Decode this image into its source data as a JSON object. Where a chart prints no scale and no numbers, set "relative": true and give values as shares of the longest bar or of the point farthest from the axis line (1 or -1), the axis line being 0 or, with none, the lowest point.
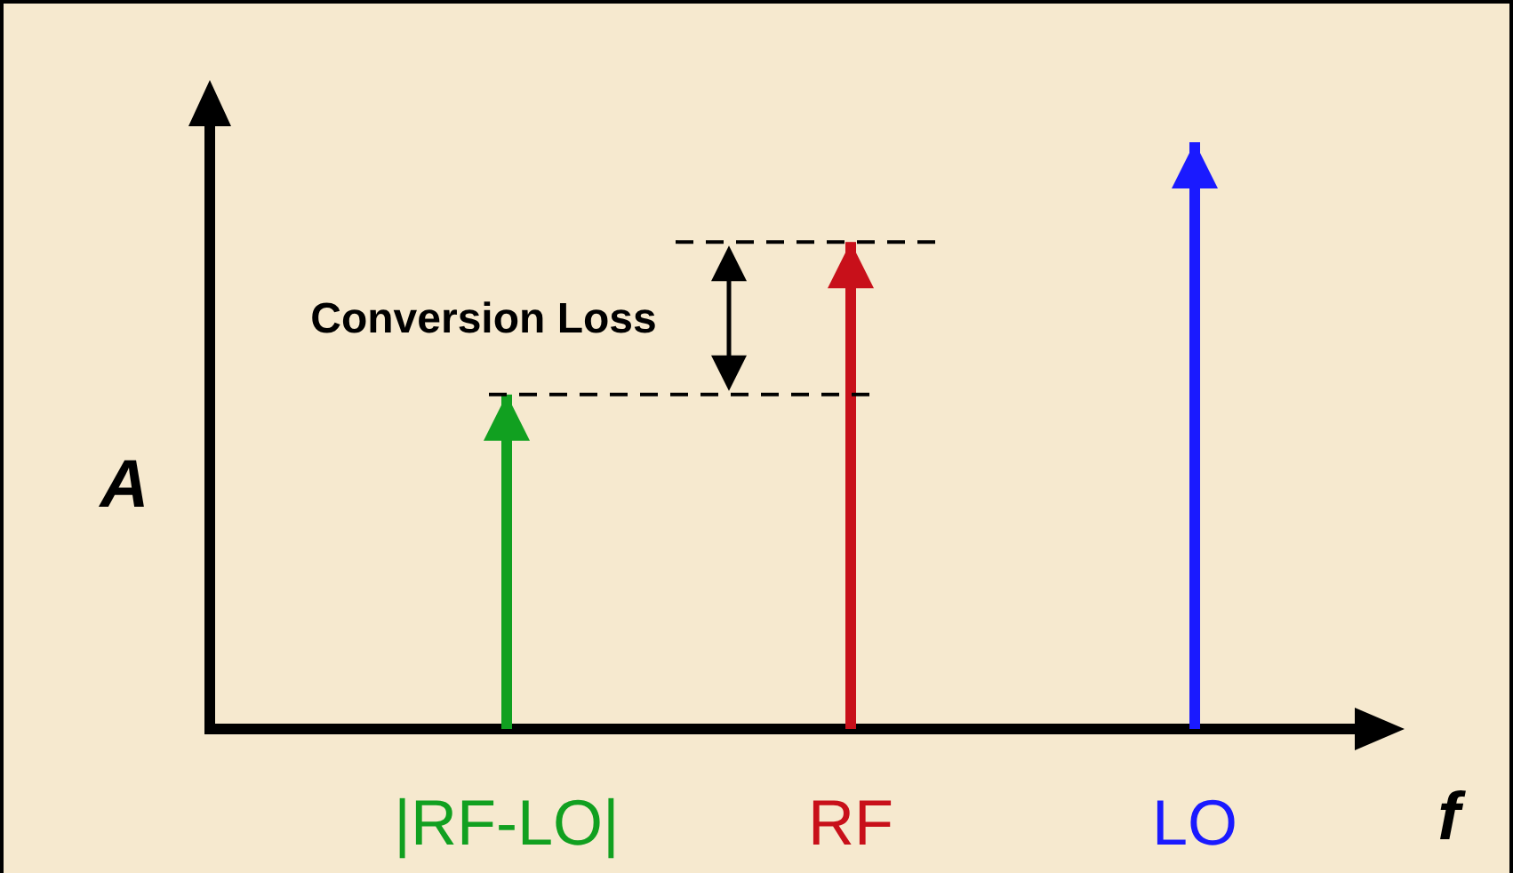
{
  "chart_data": {
    "type": "bar",
    "relative": true,
    "categories": [
      "|RF-LO|",
      "RF",
      "LO"
    ],
    "values": [
      0.57,
      0.83,
      1
    ],
    "colors": [
      "#11a020",
      "#c8101a",
      "#1a1aff"
    ],
    "xlabel": "f",
    "ylabel": "A",
    "marker": "triangle",
    "legend": false,
    "grid": false,
    "annotations": [
      "Conversion Loss"
    ]
  }
}
